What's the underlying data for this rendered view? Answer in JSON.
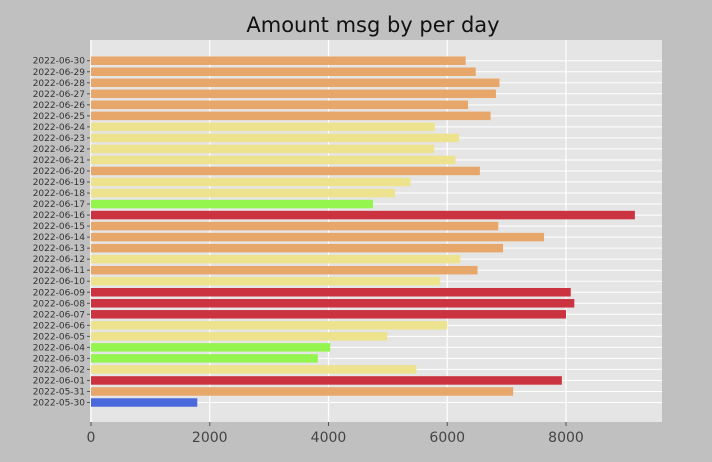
{
  "chart_data": {
    "type": "bar",
    "orientation": "horizontal",
    "title": "Amount msg by per day",
    "xlabel": "",
    "ylabel": "",
    "xlim": [
      0,
      9600
    ],
    "xticks": [
      0,
      2000,
      4000,
      6000,
      8000
    ],
    "xtick_labels": [
      "0",
      "2000",
      "4000",
      "6000",
      "8000"
    ],
    "grid": true,
    "legend": "none",
    "categories": [
      "2022-05-30",
      "2022-05-31",
      "2022-06-01",
      "2022-06-02",
      "2022-06-03",
      "2022-06-04",
      "2022-06-05",
      "2022-06-06",
      "2022-06-07",
      "2022-06-08",
      "2022-06-09",
      "2022-06-10",
      "2022-06-11",
      "2022-06-12",
      "2022-06-13",
      "2022-06-14",
      "2022-06-15",
      "2022-06-16",
      "2022-06-17",
      "2022-06-18",
      "2022-06-19",
      "2022-06-20",
      "2022-06-21",
      "2022-06-22",
      "2022-06-23",
      "2022-06-24",
      "2022-06-25",
      "2022-06-26",
      "2022-06-27",
      "2022-06-28",
      "2022-06-29",
      "2022-06-30"
    ],
    "values": [
      1790,
      7110,
      7930,
      5480,
      3820,
      4030,
      4990,
      6000,
      8000,
      8140,
      8080,
      5880,
      6510,
      6220,
      6940,
      7630,
      6860,
      9160,
      4750,
      5120,
      5380,
      6550,
      6140,
      5780,
      6200,
      5790,
      6730,
      6350,
      6820,
      6880,
      6480,
      6310
    ],
    "colors": [
      "#4a69dc",
      "#e8a76a",
      "#cc3340",
      "#ede28d",
      "#95f54f",
      "#95f54f",
      "#ede28d",
      "#ede28d",
      "#cc3340",
      "#cc3340",
      "#cc3340",
      "#ede28d",
      "#e8a76a",
      "#ede28d",
      "#e8a76a",
      "#e8a76a",
      "#e8a76a",
      "#cc3340",
      "#95f54f",
      "#ede28d",
      "#ede28d",
      "#e8a76a",
      "#ede28d",
      "#ede28d",
      "#ede28d",
      "#ede28d",
      "#e8a76a",
      "#e8a76a",
      "#e8a76a",
      "#e8a76a",
      "#e8a76a",
      "#e8a76a"
    ],
    "plot_background": "#e5e5e5",
    "figure_background": "#c0c0c0",
    "grid_color": "#ffffff"
  }
}
